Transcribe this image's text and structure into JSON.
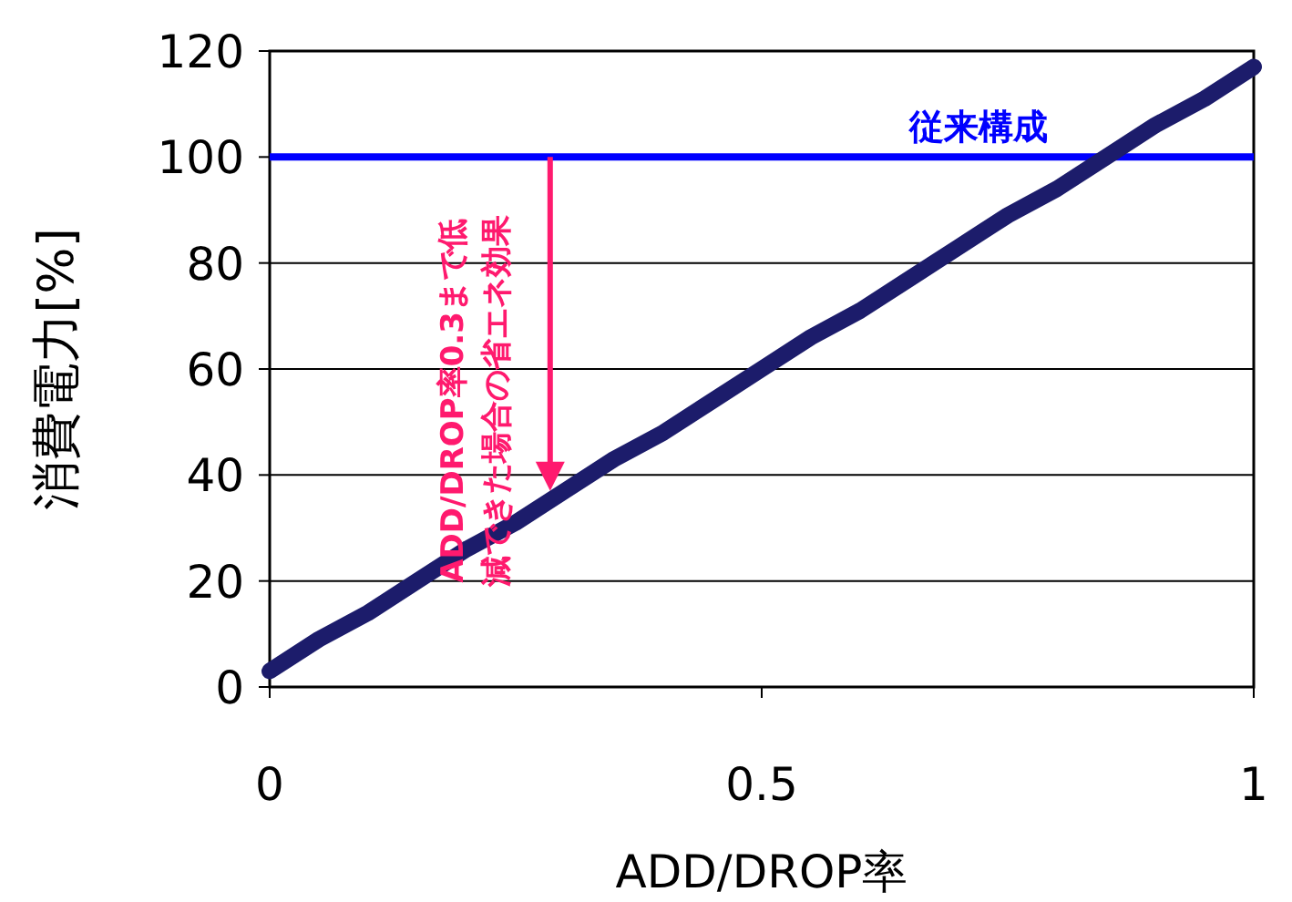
{
  "chart_data": {
    "type": "line",
    "xlabel": "ADD/DROP率",
    "ylabel": "消費電力[%]",
    "x": [
      0,
      0.05,
      0.1,
      0.15,
      0.2,
      0.25,
      0.3,
      0.35,
      0.4,
      0.45,
      0.5,
      0.55,
      0.6,
      0.65,
      0.7,
      0.75,
      0.8,
      0.85,
      0.9,
      0.95,
      1
    ],
    "series": [
      {
        "color": "#1c1c6b",
        "values": [
          3,
          9,
          14,
          20,
          26,
          31,
          37,
          43,
          48,
          54,
          60,
          66,
          71,
          77,
          83,
          89,
          94,
          100,
          106,
          111,
          117
        ]
      }
    ],
    "xlim": [
      0,
      1
    ],
    "xticks": [
      0,
      0.5,
      1
    ],
    "ylim": [
      0,
      120
    ],
    "yticks": [
      0,
      20,
      40,
      60,
      80,
      100,
      120
    ],
    "grid": "y",
    "ref_lines": [
      {
        "axis": "y",
        "value": 100,
        "label": "従来構成",
        "color": "#0000ff"
      }
    ],
    "annotations": [
      {
        "text": "ADD/DROP率0.3まで低減できた場合の省エネ効果",
        "x": 0.285,
        "y": 37
      }
    ]
  }
}
